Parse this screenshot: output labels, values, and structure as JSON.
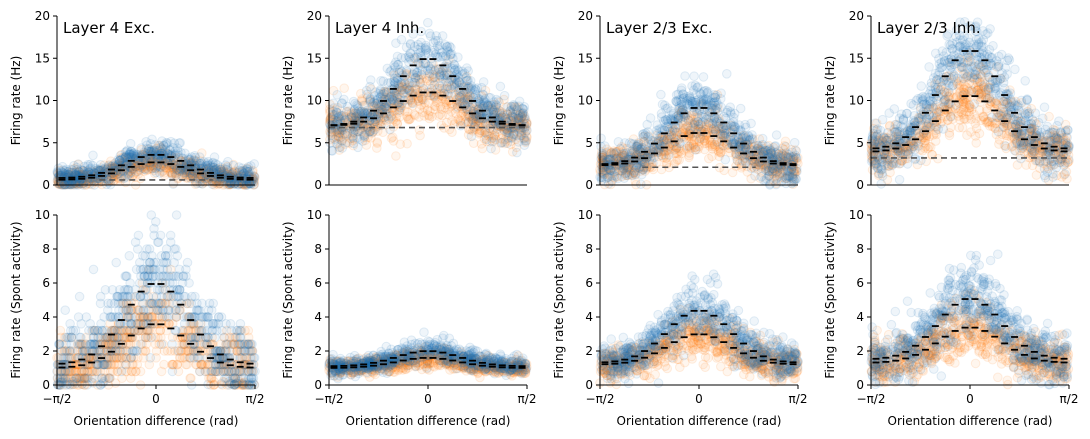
{
  "chart_data": [
    {
      "type": "scatter",
      "title": "Layer 4 Exc.",
      "ylabel": "Firing rate (Hz)",
      "xlabel": "",
      "ylim": [
        0,
        20
      ],
      "yticks": [
        0,
        5,
        10,
        15,
        20
      ],
      "xlim": [
        -1.5708,
        1.5708
      ],
      "xticks": [],
      "peak_blue": 3.6,
      "peak_orange": 2.7,
      "base_blue": 0.8,
      "base_orange": 0.6,
      "spread_blue": 1.0,
      "spread_orange": 0.8,
      "baseline": 0.6,
      "quantized": false
    },
    {
      "type": "scatter",
      "title": "Layer 4 Inh.",
      "ylabel": "Firing rate (Hz)",
      "xlabel": "",
      "ylim": [
        0,
        20
      ],
      "yticks": [
        0,
        5,
        10,
        15,
        20
      ],
      "xlim": [
        -1.5708,
        1.5708
      ],
      "xticks": [],
      "peak_blue": 15.0,
      "peak_orange": 11.0,
      "base_blue": 7.0,
      "base_orange": 7.0,
      "spread_blue": 2.0,
      "spread_orange": 1.8,
      "baseline": 6.8,
      "quantized": false
    },
    {
      "type": "scatter",
      "title": "Layer 2/3 Exc.",
      "ylabel": "Firing rate (Hz)",
      "xlabel": "",
      "ylim": [
        0,
        20
      ],
      "yticks": [
        0,
        5,
        10,
        15,
        20
      ],
      "xlim": [
        -1.5708,
        1.5708
      ],
      "xticks": [],
      "peak_blue": 9.2,
      "peak_orange": 6.2,
      "base_blue": 2.4,
      "base_orange": 2.3,
      "spread_blue": 1.8,
      "spread_orange": 1.5,
      "baseline": 2.1,
      "quantized": false
    },
    {
      "type": "scatter",
      "title": "Layer 2/3 Inh.",
      "ylabel": "Firing rate (Hz)",
      "xlabel": "",
      "ylim": [
        0,
        20
      ],
      "yticks": [
        0,
        5,
        10,
        15,
        20
      ],
      "xlim": [
        -1.5708,
        1.5708
      ],
      "xticks": [],
      "peak_blue": 16.0,
      "peak_orange": 10.6,
      "base_blue": 4.2,
      "base_orange": 3.9,
      "spread_blue": 2.5,
      "spread_orange": 2.0,
      "baseline": 3.2,
      "quantized": false
    },
    {
      "type": "scatter",
      "title": "",
      "ylabel": "Firing rate (Spont activity)",
      "xlabel": "Orientation difference (rad)",
      "ylim": [
        0,
        10
      ],
      "yticks": [
        0,
        2,
        4,
        6,
        8,
        10
      ],
      "xlim": [
        -1.5708,
        1.5708
      ],
      "xticks": [
        "−π/2",
        "0",
        "π/2"
      ],
      "peak_blue": 6.0,
      "peak_orange": 3.6,
      "base_blue": 1.2,
      "base_orange": 1.0,
      "spread_blue": 1.8,
      "spread_orange": 1.2,
      "baseline": null,
      "quantized": true
    },
    {
      "type": "scatter",
      "title": "",
      "ylabel": "Firing rate (Spont activity)",
      "xlabel": "Orientation difference (rad)",
      "ylim": [
        0,
        10
      ],
      "yticks": [
        0,
        2,
        4,
        6,
        8,
        10
      ],
      "xlim": [
        -1.5708,
        1.5708
      ],
      "xticks": [
        "−π/2",
        "0",
        "π/2"
      ],
      "peak_blue": 2.0,
      "peak_orange": 1.6,
      "base_blue": 1.1,
      "base_orange": 1.0,
      "spread_blue": 0.35,
      "spread_orange": 0.3,
      "baseline": null,
      "quantized": false
    },
    {
      "type": "scatter",
      "title": "",
      "ylabel": "Firing rate (Spont activity)",
      "xlabel": "Orientation difference (rad)",
      "ylim": [
        0,
        10
      ],
      "yticks": [
        0,
        2,
        4,
        6,
        8,
        10
      ],
      "xlim": [
        -1.5708,
        1.5708
      ],
      "xticks": [
        "−π/2",
        "0",
        "π/2"
      ],
      "peak_blue": 4.4,
      "peak_orange": 3.0,
      "base_blue": 1.3,
      "base_orange": 1.2,
      "spread_blue": 0.8,
      "spread_orange": 0.7,
      "baseline": null,
      "quantized": false
    },
    {
      "type": "scatter",
      "title": "",
      "ylabel": "Firing rate (Spont activity)",
      "xlabel": "Orientation difference (rad)",
      "ylim": [
        0,
        10
      ],
      "yticks": [
        0,
        2,
        4,
        6,
        8,
        10
      ],
      "xlim": [
        -1.5708,
        1.5708
      ],
      "xticks": [
        "−π/2",
        "0",
        "π/2"
      ],
      "peak_blue": 5.1,
      "peak_orange": 3.4,
      "base_blue": 1.5,
      "base_orange": 1.3,
      "spread_blue": 1.1,
      "spread_orange": 0.9,
      "baseline": null,
      "quantized": false
    }
  ],
  "colors": {
    "blue": "#1f77b4",
    "orange": "#ff7f0e",
    "mean": "#000000",
    "baseline": "#555555",
    "axis": "#000000"
  },
  "n_bins": 20
}
